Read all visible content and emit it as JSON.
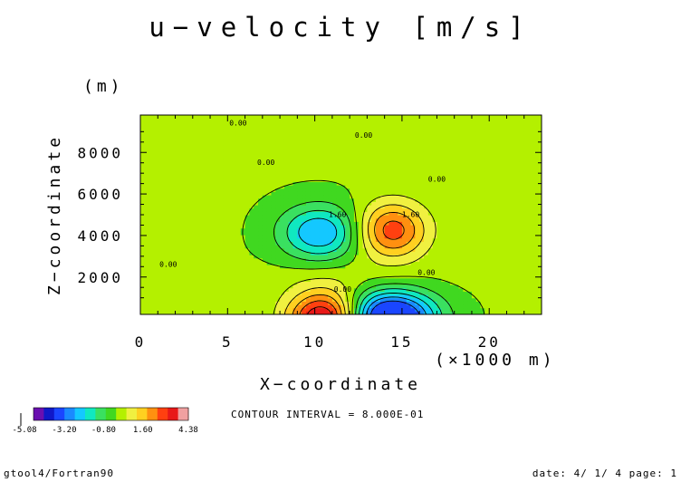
{
  "chart_data": {
    "type": "heatmap",
    "title": "u−velocity [m/s]",
    "xlabel": "X−coordinate",
    "xunit": "(×1000 m)",
    "ylabel": "Z−coordinate",
    "yunit": "(m)",
    "xlim": [
      0,
      23
    ],
    "ylim": [
      200,
      9800
    ],
    "x_ticks": [
      0,
      5,
      10,
      15,
      20
    ],
    "y_ticks": [
      2000,
      4000,
      6000,
      8000
    ],
    "x_tick_labels": [
      "0",
      "5",
      "10",
      "15",
      "20"
    ],
    "y_tick_labels": [
      "2000",
      "4000",
      "6000",
      "8000"
    ],
    "contour_interval_text": "CONTOUR INTERVAL = 8.000E-01",
    "contour_labels": [
      "0.00",
      "1.60"
    ],
    "colorbar_tick_labels": [
      "-3.20",
      "-0.80",
      "1.60",
      "4.38"
    ],
    "colorbar_min_text": "-5.08",
    "levels": [
      -4.0,
      -3.2,
      -2.4,
      -1.6,
      -0.8,
      0.0,
      0.8,
      1.6,
      2.4,
      3.2,
      4.0
    ],
    "colors": [
      "#6a0fb0",
      "#1018c8",
      "#1a46ff",
      "#1a8aff",
      "#14c8ff",
      "#10e8c0",
      "#3ae060",
      "#40d820",
      "#b4f000",
      "#f0f040",
      "#ffd020",
      "#ff9010",
      "#ff4010",
      "#e81818",
      "#f0a0a0"
    ],
    "extrema": [
      {
        "x": 14.3,
        "z": 4200,
        "value": 3.2
      },
      {
        "x": 10.5,
        "z": 4200,
        "value": -3.1
      },
      {
        "x": 10.6,
        "z": 200,
        "value": 4.38
      },
      {
        "x": 14.1,
        "z": 200,
        "value": -5.08
      }
    ]
  },
  "footer": {
    "left": "gtool4/Fortran90",
    "right": "date: 4/ 1/ 4 page: 1"
  }
}
